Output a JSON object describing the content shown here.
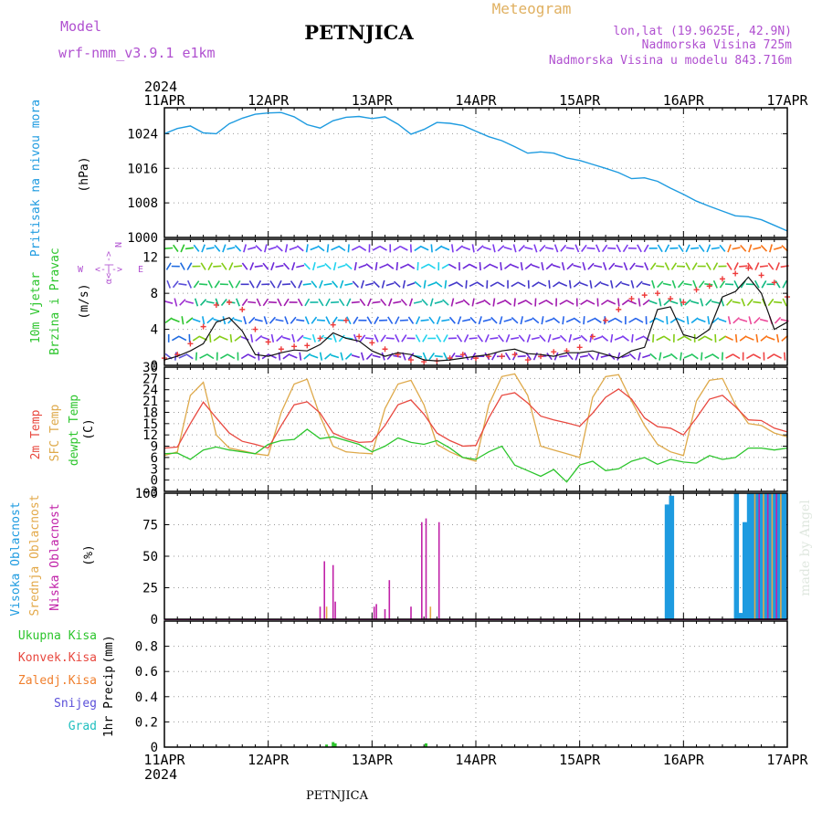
{
  "header": {
    "model_label": "Model",
    "model_name": "wrf-nmm_v3.9.1 e1km",
    "title": "PETNJICA",
    "subtitle": "Meteogram",
    "lonlat": "lon,lat (19.9625E, 42.9N)",
    "altitude": "Nadmorska Visina 725m",
    "model_altitude": "Nadmorska Visina u modelu 843.716m",
    "footer_title": "PETNJICA",
    "watermark": "made by Angel"
  },
  "colors": {
    "pressure": "#1e9be0",
    "temp2m": "#e8483f",
    "sfc": "#dea94a",
    "dewpt": "#2cc52c",
    "high_cloud": "#1e9be0",
    "mid_cloud": "#e3a94a",
    "low_cloud": "#c021a8",
    "total_precip": "#2cc52c",
    "conv_precip": "#e8483f",
    "frz_precip": "#f07f2d",
    "snow": "#5a4fd9",
    "hail": "#1fbfbf",
    "purple_text": "#b050d0",
    "orange_text": "#e0b060",
    "wind_speed": "#111111",
    "gust": "#ee3b3b"
  },
  "time_axis": {
    "year": "2024",
    "days": [
      "11APR",
      "12APR",
      "13APR",
      "14APR",
      "15APR",
      "16APR",
      "17APR"
    ],
    "hours": [
      0,
      24,
      48,
      72,
      96,
      120,
      144
    ]
  },
  "chart_data": [
    {
      "type": "line",
      "name": "pressure",
      "ylabel": "Pritisak na nivou mora",
      "unit": "(hPa)",
      "ylim": [
        1000,
        1030
      ],
      "yticks": [
        1000,
        1008,
        1016,
        1024
      ],
      "grid": true,
      "x": [
        0,
        3,
        6,
        9,
        12,
        15,
        18,
        21,
        24,
        27,
        30,
        33,
        36,
        39,
        42,
        45,
        48,
        51,
        54,
        57,
        60,
        63,
        66,
        69,
        72,
        75,
        78,
        81,
        84,
        87,
        90,
        93,
        96,
        99,
        102,
        105,
        108,
        111,
        114,
        117,
        120,
        123,
        126,
        129,
        132,
        135,
        138,
        141,
        144
      ],
      "y": [
        1024.0,
        1025.2,
        1025.8,
        1024.2,
        1024.0,
        1026.3,
        1027.6,
        1028.5,
        1028.8,
        1028.9,
        1027.9,
        1026.1,
        1025.3,
        1027.0,
        1027.8,
        1028.0,
        1027.5,
        1027.9,
        1026.2,
        1023.9,
        1025.0,
        1026.6,
        1026.4,
        1025.9,
        1024.6,
        1023.3,
        1022.4,
        1021.0,
        1019.5,
        1019.8,
        1019.5,
        1018.4,
        1017.8,
        1016.9,
        1016.0,
        1015.0,
        1013.6,
        1013.8,
        1013.0,
        1011.4,
        1010.0,
        1008.4,
        1007.2,
        1006.1,
        1005.0,
        1004.8,
        1004.1,
        1002.8,
        1001.5
      ]
    },
    {
      "type": "line",
      "name": "wind",
      "ylabel": "10m Vjetar",
      "ylabel2": "Brzina i Pravac",
      "unit": "(m/s)",
      "ylim": [
        0,
        14
      ],
      "yticks": [
        0,
        4,
        8,
        12
      ],
      "compass": "N",
      "compass_w": "W",
      "compass_e": "E",
      "grid": true,
      "x": [
        0,
        3,
        6,
        9,
        12,
        15,
        18,
        21,
        24,
        27,
        30,
        33,
        36,
        39,
        42,
        45,
        48,
        51,
        54,
        57,
        60,
        63,
        66,
        69,
        72,
        75,
        78,
        81,
        84,
        87,
        90,
        93,
        96,
        99,
        102,
        105,
        108,
        111,
        114,
        117,
        120,
        123,
        126,
        129,
        132,
        135,
        138,
        141,
        144
      ],
      "speed": [
        0.6,
        1.0,
        1.6,
        2.4,
        4.8,
        5.3,
        3.8,
        1.2,
        1.0,
        1.4,
        1.7,
        1.6,
        2.3,
        3.6,
        3.0,
        2.7,
        1.6,
        1.0,
        1.4,
        1.2,
        0.6,
        0.5,
        0.6,
        0.8,
        1.0,
        1.2,
        1.6,
        1.8,
        1.3,
        1.2,
        1.0,
        1.4,
        1.4,
        1.6,
        1.2,
        0.8,
        1.6,
        2.0,
        6.2,
        6.5,
        3.4,
        3.0,
        4.0,
        7.6,
        8.2,
        9.8,
        8.0,
        4.0,
        4.8
      ],
      "gust": [
        0.8,
        1.2,
        2.4,
        4.3,
        6.7,
        7.0,
        6.2,
        4.0,
        2.6,
        1.8,
        2.1,
        2.2,
        3.0,
        4.5,
        5.0,
        3.2,
        2.5,
        1.8,
        1.2,
        0.6,
        0.4,
        0.5,
        0.8,
        1.2,
        0.8,
        1.0,
        1.0,
        1.2,
        0.6,
        1.0,
        1.5,
        1.6,
        2.0,
        3.2,
        5.0,
        6.2,
        7.4,
        7.8,
        8.0,
        7.4,
        7.0,
        8.4,
        8.8,
        9.6,
        10.2,
        10.8,
        10.0,
        9.2,
        7.6
      ]
    },
    {
      "type": "line",
      "name": "temperature",
      "ylabel": "2m Temp",
      "ylabel2": "SFC Temp",
      "ylabel3": "dewpt Temp",
      "unit": "(C)",
      "ylim": [
        -3,
        30
      ],
      "yticks": [
        -3,
        0,
        3,
        6,
        9,
        12,
        15,
        18,
        21,
        24,
        27,
        30
      ],
      "grid": true,
      "x": [
        0,
        3,
        6,
        9,
        12,
        15,
        18,
        21,
        24,
        27,
        30,
        33,
        36,
        39,
        42,
        45,
        48,
        51,
        54,
        57,
        60,
        63,
        66,
        69,
        72,
        75,
        78,
        81,
        84,
        87,
        90,
        93,
        96,
        99,
        102,
        105,
        108,
        111,
        114,
        117,
        120,
        123,
        126,
        129,
        132,
        135,
        138,
        141,
        144
      ],
      "temp2m": [
        8.5,
        8.8,
        15.0,
        20.7,
        16.5,
        12.5,
        10.3,
        9.5,
        8.5,
        14.5,
        20.0,
        20.8,
        17.8,
        12.5,
        11.0,
        10.0,
        10.2,
        14.5,
        20.0,
        21.3,
        17.5,
        12.5,
        10.5,
        9.0,
        9.2,
        16.5,
        22.5,
        23.2,
        20.5,
        17.0,
        16.0,
        15.2,
        14.3,
        17.8,
        22.0,
        24.2,
        21.5,
        16.5,
        14.2,
        13.8,
        12.0,
        16.5,
        21.5,
        22.5,
        19.5,
        16.0,
        15.8,
        13.8,
        12.8
      ],
      "sfc": [
        6.5,
        7.5,
        22.5,
        26.0,
        12.0,
        8.5,
        7.8,
        7.0,
        6.5,
        18.0,
        25.5,
        26.8,
        17.0,
        9.0,
        7.5,
        7.2,
        7.0,
        19.0,
        25.5,
        26.5,
        20.0,
        9.5,
        7.5,
        6.0,
        5.0,
        20.0,
        27.5,
        28.2,
        22.5,
        9.0,
        8.0,
        7.0,
        6.0,
        22.0,
        27.5,
        28.0,
        21.0,
        14.5,
        9.5,
        7.5,
        6.5,
        21.0,
        26.5,
        27.0,
        20.0,
        15.0,
        14.5,
        12.5,
        11.5
      ],
      "dewpt": [
        7.0,
        7.2,
        5.5,
        8.0,
        8.8,
        8.0,
        7.5,
        7.0,
        9.5,
        10.5,
        10.8,
        13.5,
        11.0,
        11.5,
        10.5,
        9.5,
        7.5,
        9.0,
        11.2,
        10.0,
        9.5,
        10.5,
        8.5,
        6.0,
        5.5,
        7.5,
        9.0,
        4.0,
        2.5,
        1.0,
        2.8,
        -0.5,
        4.0,
        5.0,
        2.5,
        3.0,
        5.0,
        6.0,
        4.2,
        5.5,
        4.8,
        4.5,
        6.5,
        5.5,
        6.0,
        8.5,
        8.5,
        8.0,
        8.5
      ]
    },
    {
      "type": "bar",
      "name": "cloud_cover",
      "ylabel": "Visoka Oblacnost",
      "ylabel2": "Srednja Oblacnost",
      "ylabel3": "Niska Oblacnost",
      "unit": "(%)",
      "ylim": [
        0,
        100
      ],
      "yticks": [
        0,
        25,
        50,
        75,
        100
      ],
      "grid": true,
      "series": [
        {
          "key": "high",
          "bars": [
            [
              116.0,
              91
            ],
            [
              116.5,
              91
            ],
            [
              117.0,
              98
            ],
            [
              117.5,
              98
            ],
            [
              132.0,
              100
            ],
            [
              132.5,
              100
            ],
            [
              133.0,
              5
            ],
            [
              133.5,
              5
            ],
            [
              134.0,
              77
            ],
            [
              134.5,
              77
            ],
            [
              135.0,
              100
            ],
            [
              135.5,
              100
            ],
            [
              136.0,
              100
            ],
            [
              136.5,
              100
            ],
            [
              137.0,
              100
            ],
            [
              137.5,
              100
            ],
            [
              138.0,
              100
            ],
            [
              138.5,
              100
            ],
            [
              139.0,
              100
            ],
            [
              139.5,
              100
            ],
            [
              140.0,
              100
            ],
            [
              140.5,
              100
            ],
            [
              141.0,
              100
            ],
            [
              141.5,
              100
            ],
            [
              142.0,
              100
            ],
            [
              142.5,
              100
            ],
            [
              143.0,
              100
            ],
            [
              143.5,
              100
            ]
          ]
        },
        {
          "key": "mid",
          "bars": [
            [
              37.5,
              10
            ],
            [
              61.5,
              10
            ],
            [
              136.5,
              100
            ],
            [
              138.5,
              100
            ],
            [
              140.5,
              100
            ],
            [
              142.5,
              100
            ]
          ]
        },
        {
          "key": "low",
          "bars": [
            [
              36.0,
              10
            ],
            [
              37.0,
              46
            ],
            [
              39.0,
              43
            ],
            [
              39.5,
              14
            ],
            [
              48.5,
              10
            ],
            [
              49.0,
              12
            ],
            [
              51.0,
              8
            ],
            [
              52.0,
              31
            ],
            [
              57.0,
              10
            ],
            [
              59.5,
              77
            ],
            [
              60.5,
              80
            ],
            [
              63.5,
              77
            ],
            [
              137.5,
              100
            ],
            [
              139.5,
              100
            ],
            [
              141.5,
              100
            ]
          ]
        }
      ]
    },
    {
      "type": "bar",
      "name": "precipitation",
      "ylabel": "1hr Precip",
      "unit": "(mm)",
      "legend": [
        "Ukupna Kisa",
        "Konvek.Kisa",
        "Zaledj.Kisa",
        "Snijeg",
        "Grad"
      ],
      "ylim": [
        0,
        1.0
      ],
      "yticks": [
        0,
        0.2,
        0.4,
        0.6,
        0.8
      ],
      "grid": true,
      "bars": [
        [
          37.5,
          0.02
        ],
        [
          39.0,
          0.04
        ],
        [
          39.5,
          0.03
        ],
        [
          60.5,
          0.03
        ]
      ]
    }
  ]
}
